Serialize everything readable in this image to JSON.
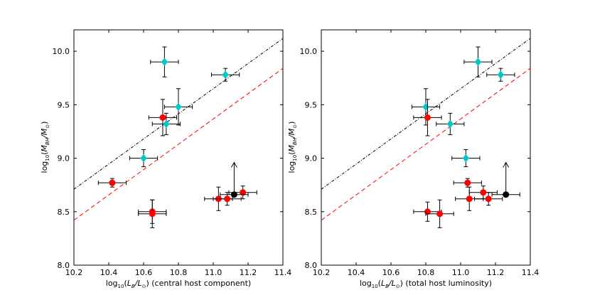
{
  "chart_data": [
    {
      "type": "scatter",
      "title": "",
      "xlabel": "log10(LB/L⊙) (central host component)",
      "ylabel": "log10(MBH/M⊙)",
      "xlim": [
        10.2,
        11.4
      ],
      "ylim": [
        8.0,
        10.2
      ],
      "xticks": [
        "10.2",
        "10.4",
        "10.6",
        "10.8",
        "11.0",
        "11.2",
        "11.4"
      ],
      "yticks": [
        "8.0",
        "8.5",
        "9.0",
        "9.5",
        "10.0"
      ],
      "lines": [
        {
          "name": "black dash-dot fit",
          "style": "dashdot",
          "color": "#000000",
          "x": [
            10.2,
            11.4
          ],
          "y": [
            8.71,
            10.12
          ]
        },
        {
          "name": "red dashed fit",
          "style": "dashed",
          "color": "#ff0000",
          "x": [
            10.2,
            11.4
          ],
          "y": [
            8.42,
            9.84
          ]
        }
      ],
      "series": [
        {
          "name": "cyan",
          "color": "#00c8c8",
          "marker": "diamond",
          "points": [
            {
              "x": 10.72,
              "y": 9.9,
              "xerr": 0.08,
              "yerr": 0.14
            },
            {
              "x": 11.07,
              "y": 9.78,
              "xerr": 0.08,
              "yerr": 0.06
            },
            {
              "x": 10.8,
              "y": 9.48,
              "xerr": 0.08,
              "yerr": 0.17
            },
            {
              "x": 10.73,
              "y": 9.32,
              "xerr": 0.08,
              "yerr": 0.1
            },
            {
              "x": 10.6,
              "y": 9.0,
              "xerr": 0.08,
              "yerr": 0.08
            }
          ]
        },
        {
          "name": "red",
          "color": "#ff0000",
          "marker": "circle",
          "points": [
            {
              "x": 10.71,
              "y": 9.38,
              "xerr": 0.08,
              "yerr": 0.17
            },
            {
              "x": 10.42,
              "y": 8.77,
              "xerr": 0.08,
              "yerr": 0.04
            },
            {
              "x": 10.65,
              "y": 8.5,
              "xerr": 0.08,
              "yerr": 0.11
            },
            {
              "x": 10.65,
              "y": 8.48,
              "xerr": 0.08,
              "yerr": 0.13
            },
            {
              "x": 11.03,
              "y": 8.62,
              "xerr": 0.08,
              "yerr": 0.11
            },
            {
              "x": 11.08,
              "y": 8.62,
              "xerr": 0.08,
              "yerr": 0.06
            },
            {
              "x": 11.17,
              "y": 8.68,
              "xerr": 0.08,
              "yerr": 0.06
            }
          ]
        },
        {
          "name": "black lower limit",
          "color": "#000000",
          "marker": "circle",
          "points": [
            {
              "x": 11.12,
              "y": 8.66,
              "xerr": 0.08,
              "yerr": 0,
              "upper_arrow_to": 8.96
            }
          ]
        }
      ]
    },
    {
      "type": "scatter",
      "title": "",
      "xlabel": "log10(LB/L⊙) (total host luminosity)",
      "ylabel": "log10(MBH/M⊙)",
      "xlim": [
        10.2,
        11.4
      ],
      "ylim": [
        8.0,
        10.2
      ],
      "xticks": [
        "10.2",
        "10.4",
        "10.6",
        "10.8",
        "11.0",
        "11.2",
        "11.4"
      ],
      "yticks": [
        "8.0",
        "8.5",
        "9.0",
        "9.5",
        "10.0"
      ],
      "lines": [
        {
          "name": "black dash-dot fit",
          "style": "dashdot",
          "color": "#000000",
          "x": [
            10.2,
            11.4
          ],
          "y": [
            8.71,
            10.12
          ]
        },
        {
          "name": "red dashed fit",
          "style": "dashed",
          "color": "#ff0000",
          "x": [
            10.2,
            11.4
          ],
          "y": [
            8.42,
            9.84
          ]
        }
      ],
      "series": [
        {
          "name": "cyan",
          "color": "#00c8c8",
          "marker": "diamond",
          "points": [
            {
              "x": 11.1,
              "y": 9.9,
              "xerr": 0.08,
              "yerr": 0.14
            },
            {
              "x": 11.23,
              "y": 9.78,
              "xerr": 0.08,
              "yerr": 0.06
            },
            {
              "x": 10.8,
              "y": 9.48,
              "xerr": 0.08,
              "yerr": 0.17
            },
            {
              "x": 10.94,
              "y": 9.32,
              "xerr": 0.08,
              "yerr": 0.1
            },
            {
              "x": 11.03,
              "y": 9.0,
              "xerr": 0.08,
              "yerr": 0.08
            }
          ]
        },
        {
          "name": "red",
          "color": "#ff0000",
          "marker": "circle",
          "points": [
            {
              "x": 10.81,
              "y": 9.38,
              "xerr": 0.08,
              "yerr": 0.17
            },
            {
              "x": 11.04,
              "y": 8.77,
              "xerr": 0.08,
              "yerr": 0.04
            },
            {
              "x": 10.81,
              "y": 8.5,
              "xerr": 0.08,
              "yerr": 0.09
            },
            {
              "x": 10.88,
              "y": 8.48,
              "xerr": 0.08,
              "yerr": 0.13
            },
            {
              "x": 11.05,
              "y": 8.62,
              "xerr": 0.08,
              "yerr": 0.11
            },
            {
              "x": 11.13,
              "y": 8.68,
              "xerr": 0.08,
              "yerr": 0.06
            },
            {
              "x": 11.16,
              "y": 8.62,
              "xerr": 0.08,
              "yerr": 0.06
            }
          ]
        },
        {
          "name": "black lower limit",
          "color": "#000000",
          "marker": "circle",
          "points": [
            {
              "x": 11.26,
              "y": 8.66,
              "xerr": 0.08,
              "yerr": 0,
              "upper_arrow_to": 8.96
            }
          ]
        }
      ]
    }
  ],
  "labels": {
    "ylabel_log": "log",
    "ylabel_sub": "10",
    "ylabel_open": "(",
    "ylabel_M": "M",
    "ylabel_BH": "BH",
    "ylabel_slash": "/",
    "ylabel_Msun": "M",
    "ylabel_sun": "⊙",
    "ylabel_close": ")",
    "xlabel_log": "log",
    "xlabel_sub": "10",
    "xlabel_open": "(",
    "xlabel_L": "L",
    "xlabel_B": "B",
    "xlabel_slash": "/",
    "xlabel_Lsun": "L",
    "xlabel_sun": "⊙",
    "xlabel_close": ")",
    "panel1_suffix": " (central host component)",
    "panel2_suffix": " (total host luminosity)"
  }
}
